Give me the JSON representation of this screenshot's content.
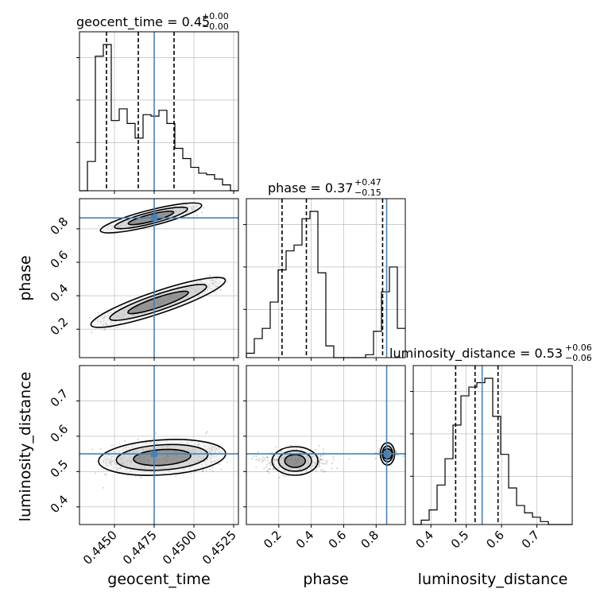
{
  "figure": {
    "colors": {
      "truth": "#4682b4",
      "hist": "#000000",
      "grid": "#b0b0b0",
      "density": "#000000"
    }
  },
  "chart_data": [
    {
      "type": "histogram",
      "panel": "geocent_time-marginal",
      "title": {
        "prefix": "geocent_time = 0.45",
        "sup": "+0.00",
        "sub": "−0.00"
      },
      "xlim": [
        0.4428,
        0.4528
      ],
      "bins": [
        0.4428,
        0.4433,
        0.4438,
        0.4443,
        0.4448,
        0.4453,
        0.4458,
        0.4463,
        0.4468,
        0.4473,
        0.4478,
        0.4483,
        0.4488,
        0.4493,
        0.4498,
        0.4503,
        0.4508,
        0.4513,
        0.4518,
        0.4523,
        0.4528
      ],
      "counts": [
        0,
        0.2,
        0.92,
        1.0,
        0.48,
        0.56,
        0.46,
        0.36,
        0.52,
        0.51,
        0.55,
        0.46,
        0.29,
        0.22,
        0.16,
        0.12,
        0.11,
        0.08,
        0.04,
        0
      ],
      "quantiles": [
        0.4445,
        0.4465,
        0.44875
      ],
      "truth": 0.4475
    },
    {
      "type": "scatter",
      "panel": "phase-vs-geocent_time",
      "x_param": "geocent_time",
      "y_param": "phase",
      "xlim": [
        0.4428,
        0.4528
      ],
      "ylim": [
        0.03,
        0.98
      ],
      "yticks": [
        "0.2",
        "0.4",
        "0.6",
        "0.8"
      ],
      "ylabel": "phase",
      "truth": {
        "x": 0.4475,
        "y": 0.865
      },
      "clusters": [
        {
          "x0": 0.444,
          "y0": 0.24,
          "x1": 0.4515,
          "y1": 0.48,
          "width": 0.05,
          "n": 420
        },
        {
          "x0": 0.4446,
          "y0": 0.8,
          "x1": 0.45,
          "y1": 0.93,
          "width": 0.03,
          "n": 200
        }
      ]
    },
    {
      "type": "histogram",
      "panel": "phase-marginal",
      "title": {
        "prefix": "phase = 0.37",
        "sup": "+0.47",
        "sub": "−0.15"
      },
      "xlim": [
        0.0,
        0.98
      ],
      "bins": [
        0.0,
        0.049,
        0.098,
        0.147,
        0.196,
        0.245,
        0.294,
        0.343,
        0.392,
        0.441,
        0.49,
        0.539,
        0.588,
        0.637,
        0.686,
        0.735,
        0.784,
        0.833,
        0.882,
        0.931,
        0.98
      ],
      "counts": [
        0.03,
        0.13,
        0.2,
        0.38,
        0.6,
        0.73,
        0.77,
        0.95,
        1.0,
        0.58,
        0.08,
        0.0,
        0.0,
        0.0,
        0.0,
        0.02,
        0.18,
        0.45,
        0.62,
        0.2
      ],
      "quantiles": [
        0.22,
        0.37,
        0.84
      ],
      "truth": 0.865
    },
    {
      "type": "scatter",
      "panel": "luminosity_distance-vs-geocent_time",
      "x_param": "geocent_time",
      "y_param": "luminosity_distance",
      "xlim": [
        0.4428,
        0.4528
      ],
      "ylim": [
        0.35,
        0.8
      ],
      "xticks": [
        "0.4450",
        "0.4475",
        "0.4500",
        "0.4525"
      ],
      "yticks": [
        "0.4",
        "0.5",
        "0.6",
        "0.7"
      ],
      "xlabel": "geocent_time",
      "ylabel": "luminosity_distance",
      "truth": {
        "x": 0.4475,
        "y": 0.55
      },
      "clusters": [
        {
          "x0": 0.4445,
          "y0": 0.53,
          "x1": 0.4515,
          "y1": 0.55,
          "width": 0.09,
          "n": 650
        }
      ]
    },
    {
      "type": "scatter",
      "panel": "luminosity_distance-vs-phase",
      "x_param": "phase",
      "y_param": "luminosity_distance",
      "xlim": [
        0.0,
        0.98
      ],
      "ylim": [
        0.35,
        0.8
      ],
      "xticks": [
        "0.2",
        "0.4",
        "0.6",
        "0.8"
      ],
      "xlabel": "phase",
      "truth": {
        "x": 0.865,
        "y": 0.55
      },
      "clusters": [
        {
          "x0": 0.3,
          "y0": 0.53,
          "x1": 0.3,
          "y1": 0.53,
          "width": 0.07,
          "wx": 0.16,
          "n": 520
        },
        {
          "x0": 0.87,
          "y0": 0.55,
          "x1": 0.87,
          "y1": 0.55,
          "width": 0.05,
          "wx": 0.05,
          "n": 120
        }
      ]
    },
    {
      "type": "histogram",
      "panel": "luminosity_distance-marginal",
      "title": {
        "prefix": "luminosity_distance = 0.53",
        "sup": "+0.06",
        "sub": "−0.06"
      },
      "xlim": [
        0.35,
        0.8
      ],
      "xticks": [
        "0.4",
        "0.5",
        "0.6",
        "0.7"
      ],
      "xlabel": "luminosity_distance",
      "bins": [
        0.35,
        0.3725,
        0.395,
        0.4175,
        0.44,
        0.4625,
        0.485,
        0.5075,
        0.53,
        0.5525,
        0.575,
        0.5975,
        0.62,
        0.6425,
        0.665,
        0.6875,
        0.71,
        0.7325,
        0.755,
        0.7775,
        0.8
      ],
      "counts": [
        0.0,
        0.03,
        0.1,
        0.27,
        0.45,
        0.68,
        0.88,
        0.94,
        0.97,
        1.0,
        0.74,
        0.48,
        0.25,
        0.13,
        0.08,
        0.05,
        0.02,
        0.0,
        0.0,
        0.0
      ],
      "quantiles": [
        0.47,
        0.525,
        0.59
      ],
      "truth": 0.545
    }
  ]
}
